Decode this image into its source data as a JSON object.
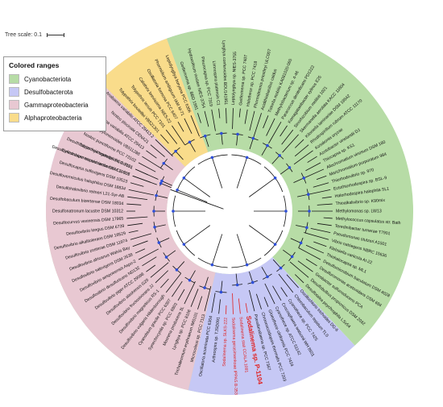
{
  "tree_scale": {
    "label": "Tree scale: 0.1"
  },
  "legend": {
    "title": "Colored ranges",
    "items": [
      {
        "label": "Cyanobacteriota",
        "color": "#b7dca6"
      },
      {
        "label": "Desulfobacterota",
        "color": "#c6c8f5"
      },
      {
        "label": "Gammaproteobacteria",
        "color": "#e8c8d2"
      },
      {
        "label": "Alphaproteobacteria",
        "color": "#f9dc8b"
      }
    ]
  },
  "colors": {
    "highlight": "#e02020",
    "bootstrap_dot": "#2e4fd9",
    "branch": "#111111"
  },
  "highlight_taxon": "Sodalinema sp. P-1104",
  "clades": [
    {
      "name": "Cyanobacteriota",
      "color": "#b7dca6",
      "start_deg": 90,
      "end_deg": 193
    },
    {
      "name": "Desulfobacterota",
      "color": "#c6c8f5",
      "start_deg": 193,
      "end_deg": 270
    },
    {
      "name": "Cyanobacteriota",
      "color": "#b7dca6",
      "start_deg": 282,
      "end_deg": 407
    },
    {
      "name": "Desulfobacterota",
      "color": "#c6c8f5",
      "start_deg": 407,
      "end_deg": 463
    },
    {
      "name": "Gammaproteobacteria",
      "color": "#e8c8d2",
      "start_deg": 463,
      "end_deg": 585
    },
    {
      "name": "Alphaproteobacteria",
      "color": "#f9dc8b",
      "start_deg": 585,
      "end_deg": 610
    },
    {
      "name": "Cyanobacteriota",
      "color": "#b7dca6",
      "start_deg": 610,
      "end_deg": 680
    }
  ],
  "leaves": [
    {
      "label": "Cylindrospermopsis raciborskii CS-505",
      "angle": 200,
      "color": "#111111",
      "bold": false
    },
    {
      "label": "Tolypothrix bouteillei PCC 7101",
      "angle": 204,
      "color": "#111111",
      "bold": false
    },
    {
      "label": "Nostoc punctiforme PCC 73102",
      "angle": 208,
      "color": "#111111",
      "bold": false
    },
    {
      "label": "Tolypothrix campylonemoides VB511288",
      "angle": 212,
      "color": "#111111",
      "bold": false
    },
    {
      "label": "Anabaena variabilis ATCC 29413",
      "angle": 216,
      "color": "#111111",
      "bold": false
    },
    {
      "label": "Nostoc piscinale CENA21",
      "angle": 220,
      "color": "#111111",
      "bold": false
    },
    {
      "label": "Anabaena variabilis ATCC 29413 2",
      "angle": 224,
      "color": "#111111",
      "bold": false
    },
    {
      "label": "Tolypothrix bouteillei VB521301",
      "angle": 228,
      "color": "#111111",
      "bold": false
    },
    {
      "label": "Tolypothrix tenuis PCC 7101",
      "angle": 232,
      "color": "#111111",
      "bold": false
    },
    {
      "label": "Calothrix brevissima NIES-22",
      "angle": 236,
      "color": "#111111",
      "bold": false
    },
    {
      "label": "Oscillatoria formosa PCC 6407",
      "angle": 240,
      "color": "#111111",
      "bold": false
    },
    {
      "label": "Phormidium ambiguum IAM M-71",
      "angle": 244,
      "color": "#111111",
      "bold": false
    },
    {
      "label": "Leptolyngbya boryana PCC 6306",
      "angle": 248,
      "color": "#111111",
      "bold": false
    },
    {
      "label": "Geitlerinema sp. BBD 1991",
      "angle": 252,
      "color": "#111111",
      "bold": false
    },
    {
      "label": "Hydrocoleum rivulare NIES-3754",
      "angle": 256,
      "color": "#111111",
      "bold": false
    },
    {
      "label": "Pleurocapsa sp. PCC 7319",
      "angle": 260,
      "color": "#111111",
      "bold": false
    },
    {
      "label": "Limnospira platensis C1",
      "angle": 264,
      "color": "#111111",
      "bold": false
    },
    {
      "label": "Lyngbya confervoides BDU141951",
      "angle": 268,
      "color": "#111111",
      "bold": false
    },
    {
      "label": "Leptolyngbya sp. NIES-3755",
      "angle": 272,
      "color": "#111111",
      "bold": false
    },
    {
      "label": "Geitlerinema sp. PCC 7407",
      "angle": 276,
      "color": "#111111",
      "bold": false
    },
    {
      "label": "Halothece sp. PCC 7418",
      "angle": 280,
      "color": "#111111",
      "bold": false
    },
    {
      "label": "Phormidesmis priestleyi ULC007",
      "angle": 284,
      "color": "#111111",
      "bold": false
    },
    {
      "label": "Acidithiobacillus caldus",
      "angle": 288,
      "color": "#111111",
      "bold": false
    },
    {
      "label": "Tistrella mobilis KA081020-065",
      "angle": 292,
      "color": "#111111",
      "bold": false
    },
    {
      "label": "Methylobacterium sp. 4-46",
      "angle": 296,
      "color": "#111111",
      "bold": false
    },
    {
      "label": "Paracoccus denitrificans PD1222",
      "angle": 300,
      "color": "#111111",
      "bold": false
    },
    {
      "label": "Komagataeibacter xylinus E25",
      "angle": 304,
      "color": "#111111",
      "bold": false
    },
    {
      "label": "Sinorhizobium meliloti 1021",
      "angle": 308,
      "color": "#111111",
      "bold": false
    },
    {
      "label": "Skermanella aerolata KACC 11604",
      "angle": 312,
      "color": "#111111",
      "bold": false
    },
    {
      "label": "Kiloniella laminariae DSM 19542",
      "angle": 316,
      "color": "#111111",
      "bold": false
    },
    {
      "label": "Rhodospirillum rubrum ATCC 11170",
      "angle": 320,
      "color": "#111111",
      "bold": false
    },
    {
      "label": "Kosakonia oryzae",
      "angle": 324,
      "color": "#111111",
      "bold": false
    },
    {
      "label": "Azotobacter vinelandii DJ",
      "angle": 328,
      "color": "#111111",
      "bold": false
    },
    {
      "label": "Thiocapsa sp. KS1",
      "angle": 332,
      "color": "#111111",
      "bold": false
    },
    {
      "label": "Allochromatium vinosum DSM 180",
      "angle": 336,
      "color": "#111111",
      "bold": false
    },
    {
      "label": "Marichromatium purpuratum 984",
      "angle": 340,
      "color": "#111111",
      "bold": false
    },
    {
      "label": "Thiorhodovibrio sp. 970",
      "angle": 344,
      "color": "#111111",
      "bold": false
    },
    {
      "label": "Ectothiorhodospira sp. BSL-9",
      "angle": 348,
      "color": "#111111",
      "bold": false
    },
    {
      "label": "Halorhodospira halophila SL1",
      "angle": 352,
      "color": "#111111",
      "bold": false
    },
    {
      "label": "Thioalkalivibrio sp. K90mix",
      "angle": 356,
      "color": "#111111",
      "bold": false
    },
    {
      "label": "Methylomonas sp. LW13",
      "angle": 360,
      "color": "#111111",
      "bold": false
    },
    {
      "label": "Methylococcus capsulatus str. Bath",
      "angle": 364,
      "color": "#111111",
      "bold": false
    },
    {
      "label": "Teredinibacter turnerae T7901",
      "angle": 368,
      "color": "#111111",
      "bold": false
    },
    {
      "label": "Pseudomonas stutzeri A1501",
      "angle": 372,
      "color": "#111111",
      "bold": false
    },
    {
      "label": "Vibrio natriegens NBRC 15636",
      "angle": 376,
      "color": "#111111",
      "bold": false
    },
    {
      "label": "Klebsiella variicola At-22",
      "angle": 380,
      "color": "#111111",
      "bold": false
    },
    {
      "label": "Thiohalocapsa sp. ML1",
      "angle": 384,
      "color": "#111111",
      "bold": false
    },
    {
      "label": "Desulfomicrobium baculatum DSM 4028",
      "angle": 388,
      "color": "#111111",
      "bold": false
    },
    {
      "label": "Desulfuromonas acetoxidans DSM 684",
      "angle": 392,
      "color": "#111111",
      "bold": false
    },
    {
      "label": "Geobacter sulfurreducens PCA",
      "angle": 396,
      "color": "#111111",
      "bold": false
    },
    {
      "label": "Desulfobulbus propionicus DSM 2032",
      "angle": 400,
      "color": "#111111",
      "bold": false
    },
    {
      "label": "Desulfotalea psychrophila LSv54",
      "angle": 404,
      "color": "#111111",
      "bold": false
    },
    {
      "label": "Oscillochloris trichoides DG-6",
      "angle": 408,
      "color": "#111111",
      "bold": false
    },
    {
      "label": "Chlorobaculum tepidum TLS",
      "angle": 412,
      "color": "#111111",
      "bold": false
    },
    {
      "label": "Cyanothece sp. PCC 7425",
      "angle": 416,
      "color": "#111111",
      "bold": false
    },
    {
      "label": "Crocosphaera watsonii WH 8501",
      "angle": 420,
      "color": "#111111",
      "bold": false
    },
    {
      "label": "Cyanothece sp. ATCC 51142",
      "angle": 424,
      "color": "#111111",
      "bold": false
    },
    {
      "label": "Gloeothece citriformis PCC 7424",
      "angle": 428,
      "color": "#111111",
      "bold": false
    },
    {
      "label": "Chroococcidiopsis thermalis PCC 7203",
      "angle": 432,
      "color": "#111111",
      "bold": false
    },
    {
      "label": "Pseudanabaena sp. PCC 7367",
      "angle": 436,
      "color": "#111111",
      "bold": false
    },
    {
      "label": "Sodalinema sp. P-1104",
      "angle": 440,
      "color": "#e02020",
      "bold": true
    },
    {
      "label": "Sodalinema stali CCALA 1091",
      "angle": 444,
      "color": "#e02020",
      "bold": false
    },
    {
      "label": "Sodalinema gerasimenkoae IPPAS B-353",
      "angle": 448,
      "color": "#e02020",
      "bold": false
    },
    {
      "label": "Sodalinema sp. SLKS-222",
      "angle": 452,
      "color": "#e02020",
      "bold": false
    },
    {
      "label": "Arthrospira sp. TJSD091",
      "angle": 456,
      "color": "#111111",
      "bold": false
    },
    {
      "label": "Oscillatoria acuminata PCC 6304",
      "angle": 460,
      "color": "#111111",
      "bold": false
    },
    {
      "label": "Microcoleus sp. PCC 7113",
      "angle": 464,
      "color": "#111111",
      "bold": false
    },
    {
      "label": "Trichodesmium erythraeum IMS101",
      "angle": 468,
      "color": "#111111",
      "bold": false
    },
    {
      "label": "Lyngbya sp. PCC 8106",
      "angle": 472,
      "color": "#111111",
      "bold": false
    },
    {
      "label": "Moorena producens 3L",
      "angle": 476,
      "color": "#111111",
      "bold": false
    },
    {
      "label": "Synechocystis sp. PCC 6803",
      "angle": 480,
      "color": "#111111",
      "bold": false
    },
    {
      "label": "Cyanobium gracile PCC 6307",
      "angle": 484,
      "color": "#111111",
      "bold": false
    },
    {
      "label": "Desulfovibrio vulgaris Hildenborough",
      "angle": 488,
      "color": "#111111",
      "bold": false
    },
    {
      "label": "Desulfovibrio magneticus RS-1",
      "angle": 492,
      "color": "#111111",
      "bold": false
    },
    {
      "label": "Desulfovibrio fructosivorans JJ",
      "angle": 496,
      "color": "#111111",
      "bold": false
    },
    {
      "label": "Desulfovibrio alaskensis G20",
      "angle": 500,
      "color": "#111111",
      "bold": false
    },
    {
      "label": "Desulfovibrio piger ATCC 29098",
      "angle": 504,
      "color": "#111111",
      "bold": false
    },
    {
      "label": "Desulfovibrio desulfuricans ND132",
      "angle": 508,
      "color": "#111111",
      "bold": false
    },
    {
      "label": "Desulfovibrio aespoeensis Aspo-2",
      "angle": 512,
      "color": "#111111",
      "bold": false
    },
    {
      "label": "Desulfovibrio salexigens DSM 2638",
      "angle": 516,
      "color": "#111111",
      "bold": false
    },
    {
      "label": "Desulfovibrio africanus Walvis Bay",
      "angle": 520,
      "color": "#111111",
      "bold": false
    },
    {
      "label": "Desulfovibrio zosterae DSM 11974",
      "angle": 524,
      "color": "#111111",
      "bold": false
    },
    {
      "label": "Desulfovibrio alkalitolerans DSM 16529",
      "angle": 528,
      "color": "#111111",
      "bold": false
    },
    {
      "label": "Desulfovibrio longus DSM 6739",
      "angle": 532,
      "color": "#111111",
      "bold": false
    },
    {
      "label": "Desulfocurvus vexinensis DSM 17965",
      "angle": 536,
      "color": "#111111",
      "bold": false
    },
    {
      "label": "Desulfonatronum lacustre DSM 10312",
      "angle": 540,
      "color": "#111111",
      "bold": false
    },
    {
      "label": "Desulfobaculum bizertense DSM 18034",
      "angle": 544,
      "color": "#111111",
      "bold": false
    },
    {
      "label": "Desulfohalovibrio reitneri L21-Syr-AB",
      "angle": 548,
      "color": "#111111",
      "bold": false
    },
    {
      "label": "Desulfovermiculus halophilus DSM 18834",
      "angle": 552,
      "color": "#111111",
      "bold": false
    },
    {
      "label": "Desulfocapsa sulfexigens DSM 10523",
      "angle": 556,
      "color": "#111111",
      "bold": false
    },
    {
      "label": "Desulfomicrobium escambiense DSM 10707",
      "angle": 560,
      "color": "#111111",
      "bold": false
    },
    {
      "label": "Desulfobacter hydrogenophilus AcRS1",
      "angle": 564,
      "color": "#111111",
      "bold": false
    }
  ]
}
